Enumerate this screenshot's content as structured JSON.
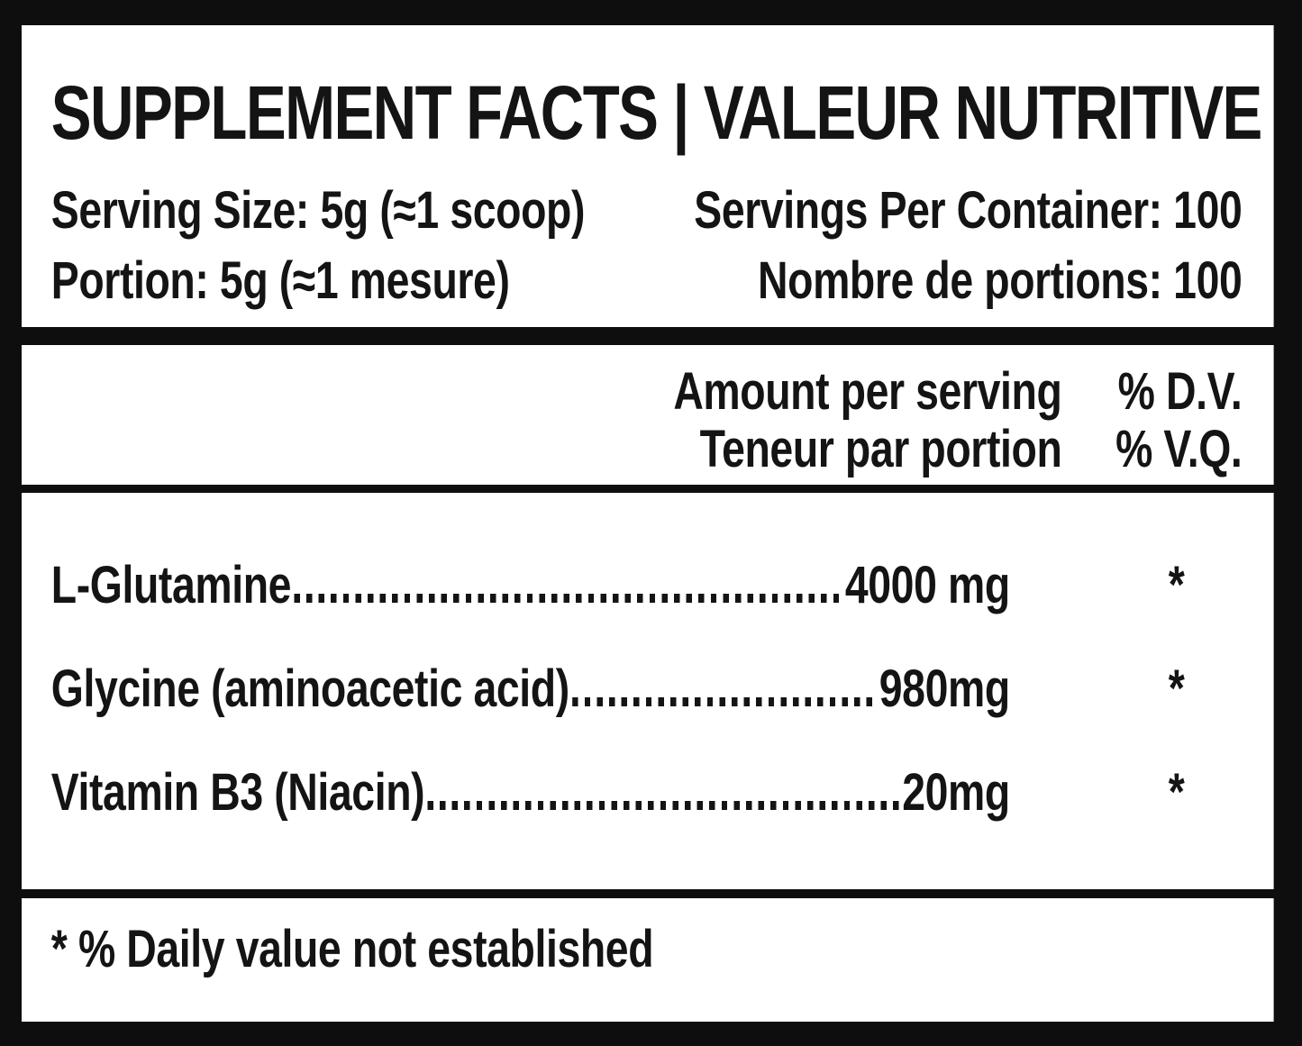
{
  "label": {
    "title": "SUPPLEMENT FACTS | VALEUR NUTRITIVE",
    "serving": {
      "size_en": "Serving Size: 5g (≈1 scoop)",
      "per_container_en": "Servings Per Container: 100",
      "size_fr": "Portion: 5g (≈1 mesure)",
      "per_container_fr": "Nombre de portions: 100"
    },
    "columns": {
      "amount_en": "Amount per serving",
      "dv_en": "% D.V.",
      "amount_fr": "Teneur par portion",
      "dv_fr": "% V.Q."
    },
    "rows": [
      {
        "name": "L-Glutamine",
        "amount": "4000 mg",
        "dv": "*"
      },
      {
        "name": "Glycine (aminoacetic acid)",
        "amount": "980mg",
        "dv": "*"
      },
      {
        "name": "Vitamin B3 (Niacin)",
        "amount": "20mg",
        "dv": "*"
      }
    ],
    "footnote": "* % Daily value not established",
    "colors": {
      "ink": "#141414",
      "paper": "#ffffff",
      "frame": "#0e0e0e"
    }
  }
}
